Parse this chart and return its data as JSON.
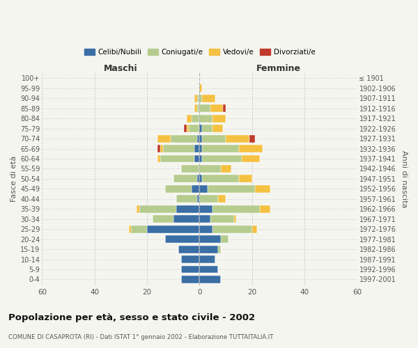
{
  "age_groups": [
    "0-4",
    "5-9",
    "10-14",
    "15-19",
    "20-24",
    "25-29",
    "30-34",
    "35-39",
    "40-44",
    "45-49",
    "50-54",
    "55-59",
    "60-64",
    "65-69",
    "70-74",
    "75-79",
    "80-84",
    "85-89",
    "90-94",
    "95-99",
    "100+"
  ],
  "birth_years": [
    "1997-2001",
    "1992-1996",
    "1987-1991",
    "1982-1986",
    "1977-1981",
    "1972-1976",
    "1967-1971",
    "1962-1966",
    "1957-1961",
    "1952-1956",
    "1947-1951",
    "1942-1946",
    "1937-1941",
    "1932-1936",
    "1927-1931",
    "1922-1926",
    "1917-1921",
    "1912-1916",
    "1907-1911",
    "1902-1906",
    "≤ 1901"
  ],
  "males": {
    "celibi": [
      7,
      7,
      7,
      8,
      13,
      20,
      10,
      9,
      1,
      3,
      1,
      0,
      2,
      2,
      1,
      0,
      0,
      0,
      0,
      0,
      0
    ],
    "coniugati": [
      0,
      0,
      0,
      0,
      0,
      6,
      8,
      14,
      8,
      10,
      9,
      7,
      13,
      12,
      10,
      4,
      3,
      1,
      1,
      0,
      0
    ],
    "vedovi": [
      0,
      0,
      0,
      0,
      0,
      1,
      0,
      1,
      0,
      0,
      0,
      0,
      1,
      1,
      5,
      1,
      2,
      1,
      1,
      0,
      0
    ],
    "divorziati": [
      0,
      0,
      0,
      0,
      0,
      0,
      0,
      0,
      0,
      0,
      0,
      0,
      0,
      1,
      0,
      1,
      0,
      0,
      0,
      0,
      0
    ]
  },
  "females": {
    "nubili": [
      8,
      7,
      6,
      7,
      8,
      5,
      4,
      5,
      0,
      3,
      1,
      0,
      1,
      1,
      1,
      1,
      0,
      0,
      0,
      0,
      0
    ],
    "coniugate": [
      0,
      0,
      0,
      1,
      3,
      15,
      9,
      18,
      7,
      18,
      14,
      8,
      15,
      14,
      9,
      4,
      5,
      4,
      1,
      0,
      0
    ],
    "vedove": [
      0,
      0,
      0,
      0,
      0,
      2,
      1,
      4,
      3,
      6,
      5,
      4,
      7,
      9,
      9,
      4,
      5,
      5,
      5,
      1,
      0
    ],
    "divorziate": [
      0,
      0,
      0,
      0,
      0,
      0,
      0,
      0,
      0,
      0,
      0,
      0,
      0,
      0,
      2,
      0,
      0,
      1,
      0,
      0,
      0
    ]
  },
  "colors": {
    "celibi_nubili": "#3A6EA5",
    "coniugati": "#B5CC8E",
    "vedovi": "#F5C142",
    "divorziati": "#C0392B"
  },
  "title": "Popolazione per età, sesso e stato civile - 2002",
  "subtitle": "COMUNE DI CASAPROTA (RI) - Dati ISTAT 1° gennaio 2002 - Elaborazione TUTTAITALIA.IT",
  "ylabel_left": "Fasce di età",
  "ylabel_right": "Anni di nascita",
  "xlabel_left": "Maschi",
  "xlabel_right": "Femmine",
  "xlim": 60,
  "background_color": "#f5f5f0",
  "plot_bg_color": "#f5f5f0",
  "grid_color": "#cccccc",
  "bar_height": 0.75
}
